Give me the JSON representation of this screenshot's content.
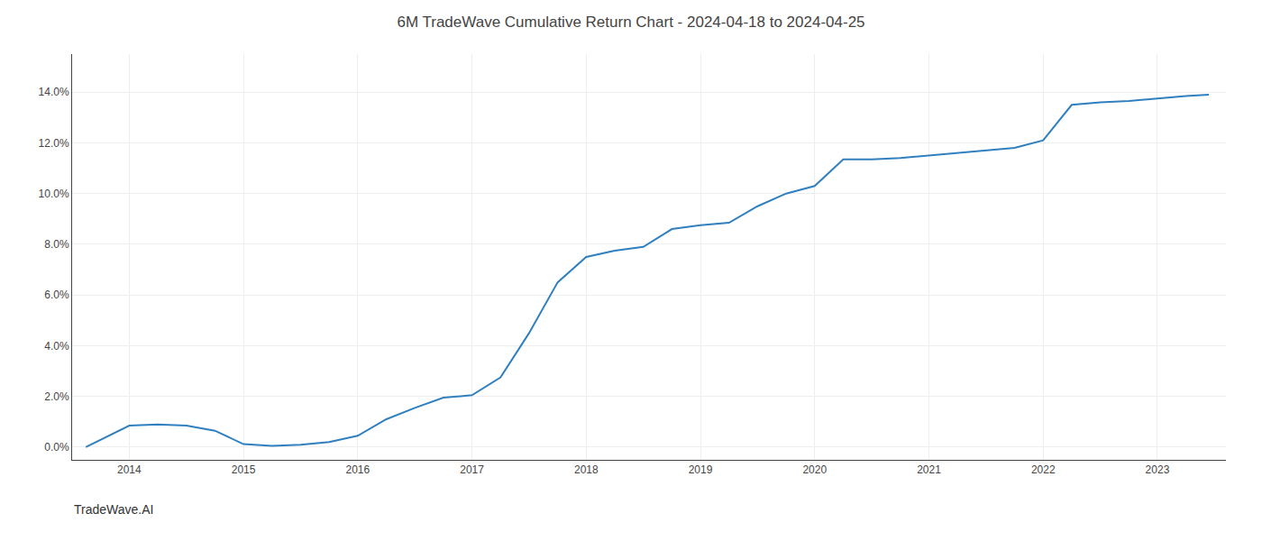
{
  "chart_data": {
    "type": "line",
    "title": "6M TradeWave Cumulative Return Chart - 2024-04-18 to 2024-04-25",
    "annotations": [
      "TradeWave.AI"
    ],
    "x": [
      2013.62,
      2014.0,
      2014.25,
      2014.5,
      2014.75,
      2015.0,
      2015.25,
      2015.5,
      2015.75,
      2016.0,
      2016.25,
      2016.5,
      2016.75,
      2017.0,
      2017.25,
      2017.5,
      2017.75,
      2018.0,
      2018.25,
      2018.5,
      2018.75,
      2019.0,
      2019.25,
      2019.5,
      2019.75,
      2020.0,
      2020.25,
      2020.5,
      2020.75,
      2021.0,
      2021.25,
      2021.5,
      2021.75,
      2022.0,
      2022.25,
      2022.5,
      2022.75,
      2023.0,
      2023.25,
      2023.45
    ],
    "values": [
      0.0,
      0.85,
      0.9,
      0.85,
      0.65,
      0.12,
      0.05,
      0.1,
      0.2,
      0.45,
      1.1,
      1.55,
      1.95,
      2.05,
      2.75,
      4.5,
      6.5,
      7.5,
      7.75,
      7.9,
      8.6,
      8.75,
      8.85,
      9.5,
      10.0,
      10.3,
      11.35,
      11.35,
      11.4,
      11.5,
      11.6,
      11.7,
      11.8,
      12.1,
      13.5,
      13.6,
      13.65,
      13.75,
      13.85,
      13.9
    ],
    "color": "#3080c0",
    "xlim": [
      2013.5,
      2023.6
    ],
    "xticks": [
      2014,
      2015,
      2016,
      2017,
      2018,
      2019,
      2020,
      2021,
      2022,
      2023
    ],
    "ylim": [
      -0.5,
      15.5
    ],
    "yticks": [
      {
        "value": 0.0,
        "label": "0.0%"
      },
      {
        "value": 2.0,
        "label": "2.0%"
      },
      {
        "value": 4.0,
        "label": "4.0%"
      },
      {
        "value": 6.0,
        "label": "6.0%"
      },
      {
        "value": 8.0,
        "label": "8.0%"
      },
      {
        "value": 10.0,
        "label": "10.0%"
      },
      {
        "value": 12.0,
        "label": "12.0%"
      },
      {
        "value": 14.0,
        "label": "14.0%"
      }
    ],
    "grid": true
  }
}
